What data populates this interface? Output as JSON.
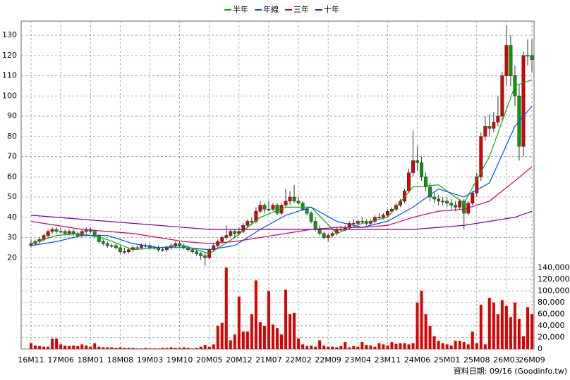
{
  "chart_data": {
    "type": "candlestick",
    "categories": [
      "16M11",
      null,
      null,
      null,
      null,
      null,
      null,
      "17M06",
      null,
      null,
      null,
      null,
      null,
      null,
      "18M01",
      null,
      null,
      null,
      null,
      null,
      null,
      "18M08",
      null,
      null,
      null,
      null,
      null,
      null,
      "19M03",
      null,
      null,
      null,
      null,
      null,
      null,
      "19M10",
      null,
      null,
      null,
      null,
      null,
      null,
      "20M05",
      null,
      null,
      null,
      null,
      null,
      null,
      "20M12",
      null,
      null,
      null,
      null,
      null,
      null,
      "21M07",
      null,
      null,
      null,
      null,
      null,
      null,
      "22M02",
      null,
      null,
      null,
      null,
      null,
      null,
      "22M09",
      null,
      null,
      null,
      null,
      null,
      null,
      "23M04",
      null,
      null,
      null,
      null,
      null,
      null,
      "23M11",
      null,
      null,
      null,
      null,
      null,
      null,
      "24M06",
      null,
      null,
      null,
      null,
      null,
      null,
      "25M01",
      null,
      null,
      null,
      null,
      null,
      null,
      "25M08",
      null,
      null,
      null,
      null,
      null,
      null,
      "26M03",
      null,
      null,
      null,
      null,
      null,
      "26M09"
    ],
    "ohlc": [
      [
        26,
        29,
        25,
        27
      ],
      [
        27,
        29,
        26,
        28
      ],
      [
        28,
        30,
        27,
        29
      ],
      [
        29,
        32,
        28,
        31
      ],
      [
        31,
        34,
        30,
        33
      ],
      [
        33,
        35,
        32,
        34
      ],
      [
        34,
        35,
        32,
        33
      ],
      [
        33,
        35,
        32,
        33
      ],
      [
        33,
        34,
        31,
        32
      ],
      [
        32,
        34,
        31,
        33
      ],
      [
        33,
        34,
        31,
        32
      ],
      [
        32,
        33,
        30,
        31
      ],
      [
        31,
        34,
        30,
        33
      ],
      [
        33,
        35,
        32,
        34
      ],
      [
        34,
        35,
        32,
        33
      ],
      [
        33,
        34,
        30,
        31
      ],
      [
        31,
        32,
        27,
        28
      ],
      [
        28,
        29,
        26,
        27
      ],
      [
        27,
        28,
        25,
        26
      ],
      [
        26,
        27,
        25,
        26
      ],
      [
        26,
        27,
        24,
        25
      ],
      [
        25,
        26,
        22,
        23
      ],
      [
        23,
        25,
        22,
        23
      ],
      [
        23,
        25,
        22,
        24
      ],
      [
        24,
        26,
        23,
        25
      ],
      [
        25,
        26,
        24,
        25
      ],
      [
        25,
        27,
        24,
        26
      ],
      [
        26,
        27,
        25,
        26
      ],
      [
        26,
        27,
        24,
        25
      ],
      [
        25,
        26,
        24,
        25
      ],
      [
        25,
        26,
        23,
        24
      ],
      [
        24,
        25,
        23,
        24
      ],
      [
        24,
        26,
        23,
        25
      ],
      [
        25,
        27,
        24,
        26
      ],
      [
        26,
        28,
        25,
        27
      ],
      [
        27,
        28,
        25,
        26
      ],
      [
        26,
        27,
        24,
        25
      ],
      [
        25,
        26,
        23,
        24
      ],
      [
        24,
        25,
        22,
        23
      ],
      [
        23,
        24,
        21,
        22
      ],
      [
        22,
        23,
        19,
        21
      ],
      [
        21,
        23,
        16,
        20
      ],
      [
        20,
        25,
        19,
        24
      ],
      [
        24,
        27,
        23,
        26
      ],
      [
        26,
        29,
        25,
        28
      ],
      [
        28,
        31,
        27,
        30
      ],
      [
        30,
        36,
        29,
        31
      ],
      [
        31,
        34,
        30,
        33
      ],
      [
        33,
        34,
        30,
        32
      ],
      [
        32,
        35,
        31,
        33
      ],
      [
        33,
        37,
        32,
        36
      ],
      [
        36,
        39,
        35,
        38
      ],
      [
        38,
        40,
        36,
        38
      ],
      [
        38,
        45,
        37,
        43
      ],
      [
        43,
        48,
        42,
        46
      ],
      [
        46,
        47,
        42,
        44
      ],
      [
        44,
        48,
        43,
        44
      ],
      [
        44,
        47,
        43,
        46
      ],
      [
        46,
        47,
        41,
        42
      ],
      [
        42,
        47,
        41,
        46
      ],
      [
        46,
        54,
        45,
        48
      ],
      [
        48,
        53,
        46,
        50
      ],
      [
        50,
        56,
        47,
        48
      ],
      [
        48,
        50,
        46,
        47
      ],
      [
        47,
        48,
        43,
        44
      ],
      [
        44,
        45,
        41,
        42
      ],
      [
        42,
        43,
        37,
        38
      ],
      [
        38,
        40,
        33,
        34
      ],
      [
        34,
        36,
        31,
        32
      ],
      [
        32,
        33,
        29,
        30
      ],
      [
        30,
        32,
        28,
        31
      ],
      [
        31,
        33,
        30,
        32
      ],
      [
        32,
        35,
        31,
        34
      ],
      [
        34,
        36,
        33,
        34
      ],
      [
        34,
        36,
        33,
        35
      ],
      [
        35,
        38,
        34,
        37
      ],
      [
        37,
        39,
        36,
        37
      ],
      [
        37,
        39,
        36,
        38
      ],
      [
        38,
        40,
        37,
        38
      ],
      [
        38,
        39,
        36,
        37
      ],
      [
        37,
        39,
        36,
        38
      ],
      [
        38,
        41,
        37,
        40
      ],
      [
        40,
        42,
        39,
        40
      ],
      [
        40,
        42,
        39,
        41
      ],
      [
        41,
        44,
        40,
        43
      ],
      [
        43,
        45,
        42,
        44
      ],
      [
        44,
        47,
        43,
        46
      ],
      [
        46,
        49,
        45,
        48
      ],
      [
        48,
        54,
        47,
        53
      ],
      [
        53,
        64,
        52,
        62
      ],
      [
        62,
        83,
        60,
        68
      ],
      [
        68,
        75,
        63,
        67
      ],
      [
        67,
        70,
        58,
        60
      ],
      [
        60,
        62,
        53,
        55
      ],
      [
        55,
        57,
        48,
        50
      ],
      [
        50,
        52,
        47,
        49
      ],
      [
        49,
        51,
        46,
        48
      ],
      [
        48,
        50,
        46,
        48
      ],
      [
        48,
        50,
        45,
        47
      ],
      [
        47,
        49,
        44,
        46
      ],
      [
        46,
        48,
        43,
        45
      ],
      [
        45,
        49,
        44,
        48
      ],
      [
        48,
        49,
        34,
        42
      ],
      [
        42,
        48,
        41,
        47
      ],
      [
        47,
        53,
        46,
        52
      ],
      [
        52,
        62,
        50,
        60
      ],
      [
        60,
        82,
        58,
        80
      ],
      [
        80,
        90,
        78,
        85
      ],
      [
        85,
        91,
        80,
        84
      ],
      [
        84,
        92,
        82,
        87
      ],
      [
        87,
        100,
        85,
        90
      ],
      [
        90,
        112,
        88,
        110
      ],
      [
        110,
        135,
        105,
        125
      ],
      [
        125,
        130,
        105,
        110
      ],
      [
        110,
        115,
        95,
        100
      ],
      [
        100,
        106,
        68,
        75
      ],
      [
        75,
        122,
        70,
        120
      ],
      [
        120,
        128,
        115,
        120
      ],
      [
        120,
        128,
        112,
        118
      ]
    ],
    "volume": [
      10000,
      6000,
      5000,
      4000,
      4000,
      18000,
      18000,
      8000,
      6000,
      5000,
      6000,
      5000,
      8000,
      6000,
      4000,
      10000,
      4000,
      3000,
      3000,
      3000,
      2000,
      3000,
      2000,
      2000,
      2000,
      1000,
      1000,
      2000,
      1000,
      1000,
      1000,
      2000,
      2000,
      3000,
      2000,
      2000,
      3000,
      2000,
      1000,
      2000,
      4000,
      7000,
      4000,
      8000,
      40000,
      45000,
      140000,
      15000,
      25000,
      90000,
      30000,
      30000,
      60000,
      118000,
      46000,
      40000,
      100000,
      42000,
      36000,
      25000,
      102000,
      60000,
      62000,
      18000,
      8000,
      5000,
      6000,
      4000,
      15000,
      6000,
      4000,
      4000,
      3000,
      5000,
      12000,
      3000,
      5000,
      4000,
      12000,
      7000,
      6000,
      4000,
      10000,
      8000,
      6000,
      12000,
      9000,
      10000,
      10000,
      8000,
      10000,
      80000,
      100000,
      60000,
      40000,
      22000,
      14000,
      10000,
      8000,
      6000,
      14000,
      14000,
      12000,
      8000,
      30000,
      10000,
      76000,
      8000,
      88000,
      80000,
      60000,
      84000,
      74000,
      55000,
      80000,
      52000,
      22000,
      72000,
      60000
    ],
    "up_color": "#e00000",
    "down_color": "#00a000",
    "volume_color": "#e00000",
    "series": [
      {
        "name": "半年",
        "color": "#00b000",
        "x": [
          0,
          6,
          12,
          18,
          24,
          30,
          36,
          42,
          48,
          54,
          60,
          66,
          72,
          78,
          84,
          90,
          96,
          102,
          108,
          114,
          118
        ],
        "values": [
          27,
          31,
          32,
          29,
          24,
          25,
          26,
          22,
          30,
          40,
          45,
          45,
          32,
          37,
          40,
          55,
          56,
          47,
          70,
          105,
          108
        ]
      },
      {
        "name": "年線",
        "color": "#0050ff",
        "x": [
          0,
          6,
          12,
          18,
          24,
          30,
          36,
          42,
          48,
          54,
          60,
          66,
          72,
          78,
          84,
          90,
          96,
          102,
          108,
          114,
          118
        ],
        "values": [
          26,
          28,
          31,
          31,
          27,
          25,
          25,
          24,
          26,
          34,
          41,
          45,
          38,
          35,
          38,
          45,
          54,
          50,
          57,
          85,
          95
        ]
      },
      {
        "name": "三年",
        "color": "#d0006a",
        "x": [
          0,
          6,
          12,
          18,
          24,
          30,
          36,
          42,
          48,
          54,
          60,
          66,
          72,
          78,
          84,
          90,
          96,
          102,
          108,
          114,
          118
        ],
        "values": [
          38,
          36,
          34,
          33,
          32,
          30,
          28,
          27,
          28,
          30,
          32,
          34,
          35,
          35,
          36,
          40,
          43,
          44,
          48,
          58,
          65
        ]
      },
      {
        "name": "十年",
        "color": "#7a00a0",
        "x": [
          0,
          6,
          12,
          18,
          24,
          30,
          36,
          42,
          48,
          54,
          60,
          66,
          72,
          78,
          84,
          90,
          96,
          102,
          108,
          114,
          118
        ],
        "values": [
          41,
          40,
          39,
          38,
          37,
          36,
          35,
          34,
          34,
          34,
          34,
          34,
          34,
          34,
          34,
          34,
          35,
          36,
          38,
          40,
          43
        ]
      }
    ],
    "ylim": [
      18,
      137
    ],
    "yticks": [
      20,
      30,
      40,
      50,
      60,
      70,
      80,
      90,
      100,
      110,
      120,
      130
    ],
    "volume_ylim": [
      0,
      150000
    ],
    "volume_yticks": [
      0,
      {
        "value": 20000,
        "label": "20,000"
      },
      {
        "value": 40000,
        "label": "40,000"
      },
      {
        "value": 60000,
        "label": "60,000"
      },
      {
        "value": 80000,
        "label": "80,000"
      },
      {
        "value": 100000,
        "label": "100,000"
      },
      {
        "value": 120000,
        "label": "120,000"
      },
      {
        "value": 140000,
        "label": "140,000"
      }
    ],
    "grid": true,
    "footer": "資料日期: 09/16 (Goodinfo.tw)"
  }
}
